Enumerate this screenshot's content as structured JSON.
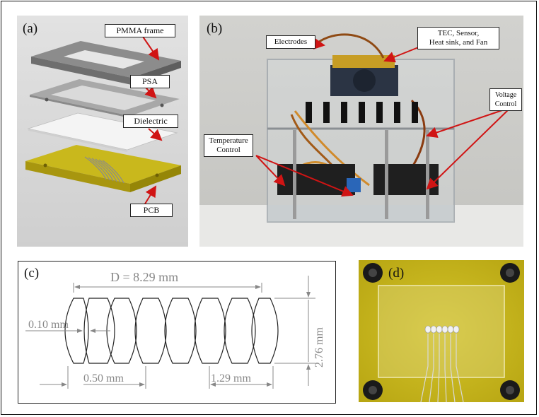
{
  "panels": {
    "a": {
      "label": "(a)",
      "callouts": {
        "frame": "PMMA frame",
        "psa": "PSA",
        "dielectric": "Dielectric",
        "pcb": "PCB"
      }
    },
    "b": {
      "label": "(b)",
      "callouts": {
        "electrodes": "Electrodes",
        "tec_line1": "TEC, Sensor,",
        "tec_line2": "Heat sink, and Fan",
        "voltage_line1": "Voltage",
        "voltage_line2": "Control",
        "temp_line1": "Temperature",
        "temp_line2": "Control"
      }
    },
    "c": {
      "label": "(c)",
      "dimensions": {
        "d": "D = 8.29 mm",
        "gap": "0.10 mm",
        "height": "2.76 mm",
        "spacing": "0.50 mm",
        "pitch": "1.29 mm"
      }
    },
    "d": {
      "label": "(d)"
    }
  },
  "colors": {
    "arrow_red": "#d01414",
    "pcb_yellow": "#c9b81c",
    "dim_gray": "#888888",
    "photo_bg": "#cdcdc9"
  }
}
